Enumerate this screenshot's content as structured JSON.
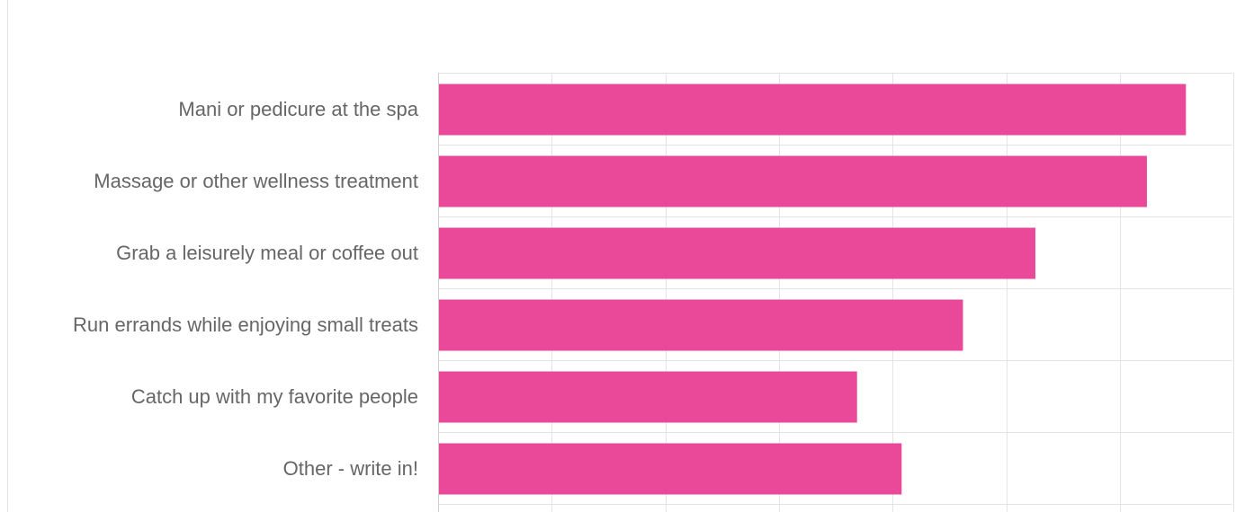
{
  "chart_data": {
    "type": "bar",
    "orientation": "horizontal",
    "categories": [
      "Mani or pedicure at the spa",
      "Massage or other wellness treatment",
      "Grab a leisurely meal or coffee out",
      "Run errands while enjoying small treats",
      "Catch up with my favorite people",
      "Other - write in!"
    ],
    "values": [
      26.8,
      25.4,
      21.4,
      18.8,
      15.0,
      16.6
    ],
    "xlim": [
      0,
      28.5
    ],
    "title": "",
    "xlabel": "",
    "ylabel": "",
    "grid": true,
    "legend": "none",
    "bar_color": "#ea4899"
  }
}
